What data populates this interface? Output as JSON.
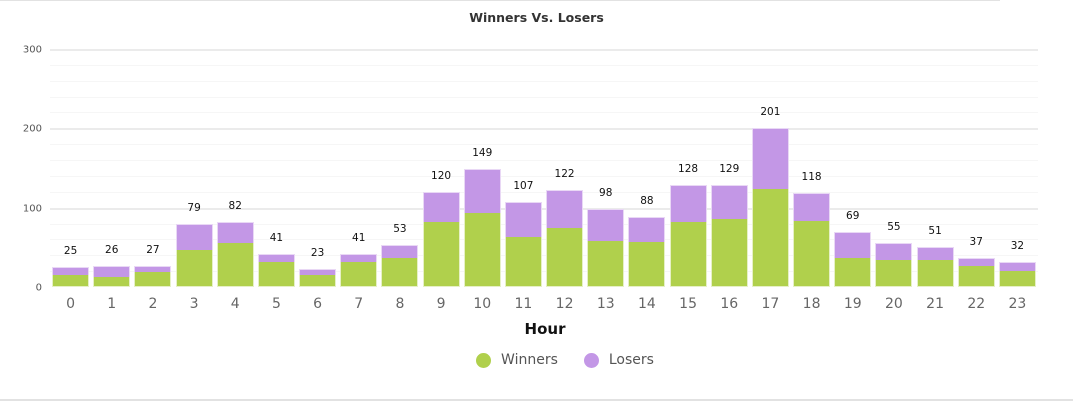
{
  "chart_data": {
    "type": "bar",
    "stacked": true,
    "title": "Winners Vs. Losers",
    "xlabel": "Hour",
    "ylabel": "",
    "ylim": [
      0,
      300
    ],
    "y_ticks": [
      0,
      100,
      200,
      300
    ],
    "grid": true,
    "legend_position": "bottom",
    "categories": [
      "0",
      "1",
      "2",
      "3",
      "4",
      "5",
      "6",
      "7",
      "8",
      "9",
      "10",
      "11",
      "12",
      "13",
      "14",
      "15",
      "16",
      "17",
      "18",
      "19",
      "20",
      "21",
      "22",
      "23"
    ],
    "series": [
      {
        "name": "Winners",
        "color": "#b0d04c",
        "values": [
          15,
          13,
          19,
          47,
          56,
          31,
          15,
          31,
          36,
          82,
          93,
          63,
          75,
          58,
          57,
          82,
          86,
          124,
          83,
          36,
          34,
          34,
          26,
          20
        ]
      },
      {
        "name": "Losers",
        "color": "#c397e6",
        "values": [
          10,
          13,
          8,
          32,
          26,
          10,
          8,
          10,
          17,
          38,
          56,
          44,
          47,
          40,
          31,
          46,
          43,
          77,
          35,
          33,
          21,
          17,
          11,
          12
        ]
      }
    ],
    "totals": [
      25,
      26,
      27,
      79,
      82,
      41,
      23,
      41,
      53,
      120,
      149,
      107,
      122,
      98,
      88,
      128,
      129,
      201,
      118,
      69,
      55,
      51,
      37,
      32
    ]
  },
  "legend": {
    "winners_label": "Winners",
    "losers_label": "Losers"
  }
}
